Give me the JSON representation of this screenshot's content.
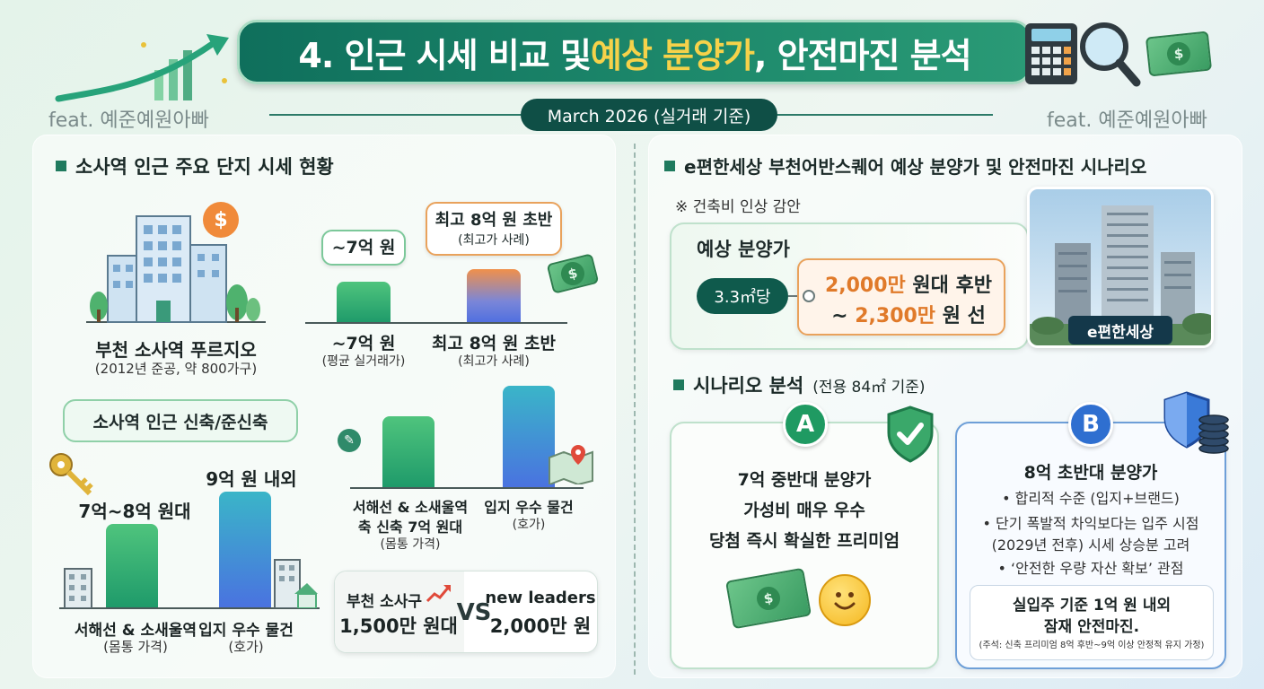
{
  "header": {
    "title_pre": "4. 인근 시세 비교 및 ",
    "title_hl": "예상 분양가",
    "title_post": ", 안전마진 분석",
    "date": "March 2026 (실거래 기준)",
    "feat": "feat. 예준예원아빠"
  },
  "left": {
    "section_title": "소사역 인근 주요 단지 시세 현황",
    "complex_name": "부천 소사역 푸르지오",
    "complex_sub": "(2012년 준공, 약 800가구)",
    "bubble_avg": "~7억 원",
    "bubble_max": "최고 8억 원 초반",
    "bubble_max_sub": "(최고가 사례)",
    "bar1_label": "~7억 원",
    "bar1_sub": "(평균 실거래가)",
    "bar2_label": "최고 8억 원 초반",
    "bar2_sub": "(최고가 사례)",
    "new_title": "소사역 인근 신축/준신축",
    "val1": "7억~8억 원대",
    "val2": "9억 원 내외",
    "bar3_label": "서해선 & 소새울역",
    "bar3_sub": "(몸통 가격)",
    "bar4_label": "입지 우수 물건",
    "bar4_sub": "(호가)",
    "bar5_label_1": "서해선 & 소새울역",
    "bar5_label_2": "축 신축 7억 원대",
    "bar5_sub": "(몸통 가격)",
    "bar6_label": "입지 우수 물건",
    "bar6_sub": "(호가)",
    "vs_left_1": "부천 소사구",
    "vs_left_2": "1,500만 원대",
    "vs": "VS",
    "vs_right_1": "new leaders",
    "vs_right_2": "2,000만 원"
  },
  "right": {
    "section_title": "e편한세상 부천어반스퀘어 예상 분양가 및 안전마진 시나리오",
    "note": "※ 건축비 인상 감안",
    "price_title": "예상 분양가",
    "unit_pill": "3.3㎡당",
    "price_1_num": "2,000만",
    "price_1_rest": " 원대 후반",
    "price_2_pre": "~ ",
    "price_2_num": "2,300만",
    "price_2_rest": " 원 선",
    "photo_label": "e편한세상",
    "scenario_title": "시나리오 분석",
    "scenario_sub": "(전용 84㎡ 기준)",
    "a": {
      "badge": "A",
      "line1": "7억 중반대 분양가",
      "line2": "가성비 매우 우수",
      "line3": "당첨 즉시 확실한 프리미엄"
    },
    "b": {
      "badge": "B",
      "title": "8억 초반대 분양가",
      "bullet1": "• 합리적 수준 (입지+브랜드)",
      "bullet2a": "• 단기 폭발적 차익보다는 입주 시점",
      "bullet2b": "(2029년 전후) 시세 상승분 고려",
      "bullet3": "• ‘안전한 우량 자산 확보’ 관점",
      "box1": "실입주 기준 1억 원 내외",
      "box2": "잠재 안전마진.",
      "footnote": "(주석: 신축 프리미엄 8억 후반~9억 이상 안정적 유지 가정)"
    }
  },
  "icons": {
    "dollar": "$",
    "check": "✓",
    "smile": "☺"
  },
  "colors": {
    "brand_green": "#0f6f5c",
    "highlight": "#f6d24a",
    "orange": "#e07a2a",
    "blue": "#2f6fd0"
  }
}
